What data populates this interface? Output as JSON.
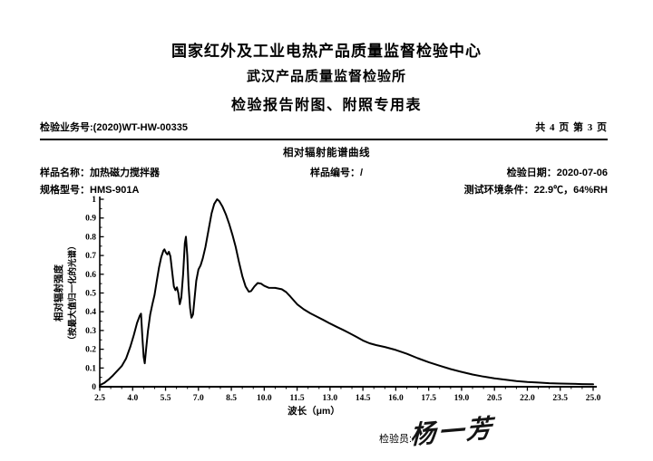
{
  "page": {
    "org_line1": "国家红外及工业电热产品质量监督检验中心",
    "org_line2": "武汉产品质量监督检验所",
    "org_line3": "检验报告附图、附照专用表",
    "business_no_label": "检验业务号:",
    "business_no": "(2020)WT-HW-00335",
    "page_indicator": "共 4 页 第 3 页"
  },
  "info": {
    "sample_name_label": "样品名称：",
    "sample_name": "加热磁力搅拌器",
    "sample_no_label": "样品编号：",
    "sample_no": "/",
    "inspect_date_label": "检验日期：",
    "inspect_date": "2020-07-06",
    "model_label": "规格型号：",
    "model": "HMS-901A",
    "env_label": "测试环境条件：",
    "env_value": "22.9℃，64%RH"
  },
  "footer": {
    "inspector_label": "检验员:",
    "inspector_signature": "杨一芳"
  },
  "chart_data": {
    "type": "line",
    "title": "相对辐射能谱曲线",
    "xlabel": "波长（μm）",
    "ylabel_line1": "相对辐射强度",
    "ylabel_line2": "（按最大值归一化的光谱）",
    "xlim": [
      2.5,
      25.0
    ],
    "ylim": [
      0,
      1
    ],
    "x_major_step": 1.5,
    "x_minor_step": 0.5,
    "y_major_step": 0.1,
    "y_minor_step": 0.05,
    "xtick_labels": [
      "2.5",
      "4.0",
      "5.5",
      "7.0",
      "8.5",
      "10.0",
      "11.5",
      "13.0",
      "14.5",
      "16.0",
      "17.5",
      "19.0",
      "20.5",
      "22.0",
      "23.5",
      "25.0"
    ],
    "ytick_labels": [
      "0",
      "0.1",
      "0.2",
      "0.3",
      "0.4",
      "0.5",
      "0.6",
      "0.7",
      "0.8",
      "0.9",
      "1"
    ],
    "grid": false,
    "legend": "none",
    "line_color": "#000000",
    "line_width": 2,
    "points": [
      [
        2.5,
        0.008
      ],
      [
        2.7,
        0.02
      ],
      [
        2.9,
        0.038
      ],
      [
        3.1,
        0.06
      ],
      [
        3.3,
        0.085
      ],
      [
        3.5,
        0.11
      ],
      [
        3.7,
        0.15
      ],
      [
        3.9,
        0.215
      ],
      [
        4.05,
        0.275
      ],
      [
        4.2,
        0.34
      ],
      [
        4.32,
        0.378
      ],
      [
        4.38,
        0.39
      ],
      [
        4.44,
        0.27
      ],
      [
        4.5,
        0.16
      ],
      [
        4.55,
        0.125
      ],
      [
        4.62,
        0.21
      ],
      [
        4.7,
        0.3
      ],
      [
        4.8,
        0.385
      ],
      [
        4.9,
        0.44
      ],
      [
        5.0,
        0.49
      ],
      [
        5.1,
        0.565
      ],
      [
        5.2,
        0.635
      ],
      [
        5.3,
        0.69
      ],
      [
        5.4,
        0.725
      ],
      [
        5.45,
        0.733
      ],
      [
        5.52,
        0.715
      ],
      [
        5.58,
        0.706
      ],
      [
        5.65,
        0.72
      ],
      [
        5.72,
        0.695
      ],
      [
        5.8,
        0.615
      ],
      [
        5.88,
        0.535
      ],
      [
        5.95,
        0.515
      ],
      [
        6.02,
        0.53
      ],
      [
        6.08,
        0.5
      ],
      [
        6.15,
        0.44
      ],
      [
        6.22,
        0.475
      ],
      [
        6.3,
        0.6
      ],
      [
        6.38,
        0.765
      ],
      [
        6.43,
        0.8
      ],
      [
        6.49,
        0.7
      ],
      [
        6.55,
        0.54
      ],
      [
        6.62,
        0.42
      ],
      [
        6.68,
        0.368
      ],
      [
        6.75,
        0.385
      ],
      [
        6.82,
        0.465
      ],
      [
        6.9,
        0.565
      ],
      [
        7.0,
        0.625
      ],
      [
        7.1,
        0.648
      ],
      [
        7.2,
        0.685
      ],
      [
        7.32,
        0.745
      ],
      [
        7.45,
        0.83
      ],
      [
        7.6,
        0.925
      ],
      [
        7.72,
        0.975
      ],
      [
        7.85,
        1.0
      ],
      [
        7.95,
        0.99
      ],
      [
        8.1,
        0.96
      ],
      [
        8.25,
        0.92
      ],
      [
        8.4,
        0.87
      ],
      [
        8.55,
        0.81
      ],
      [
        8.7,
        0.745
      ],
      [
        8.85,
        0.665
      ],
      [
        9.0,
        0.59
      ],
      [
        9.15,
        0.535
      ],
      [
        9.3,
        0.507
      ],
      [
        9.4,
        0.51
      ],
      [
        9.55,
        0.535
      ],
      [
        9.7,
        0.553
      ],
      [
        9.85,
        0.55
      ],
      [
        10.0,
        0.538
      ],
      [
        10.2,
        0.528
      ],
      [
        10.5,
        0.527
      ],
      [
        10.8,
        0.52
      ],
      [
        11.0,
        0.505
      ],
      [
        11.2,
        0.48
      ],
      [
        11.5,
        0.44
      ],
      [
        11.8,
        0.413
      ],
      [
        12.1,
        0.392
      ],
      [
        12.4,
        0.374
      ],
      [
        12.7,
        0.356
      ],
      [
        13.0,
        0.337
      ],
      [
        13.3,
        0.32
      ],
      [
        13.6,
        0.303
      ],
      [
        13.9,
        0.285
      ],
      [
        14.2,
        0.266
      ],
      [
        14.5,
        0.247
      ],
      [
        14.8,
        0.232
      ],
      [
        15.1,
        0.222
      ],
      [
        15.5,
        0.212
      ],
      [
        16.0,
        0.196
      ],
      [
        16.5,
        0.176
      ],
      [
        17.0,
        0.152
      ],
      [
        17.5,
        0.131
      ],
      [
        18.0,
        0.112
      ],
      [
        18.5,
        0.094
      ],
      [
        19.0,
        0.079
      ],
      [
        19.5,
        0.065
      ],
      [
        20.0,
        0.054
      ],
      [
        20.5,
        0.045
      ],
      [
        21.0,
        0.037
      ],
      [
        21.5,
        0.03
      ],
      [
        22.0,
        0.025
      ],
      [
        22.5,
        0.022
      ],
      [
        23.0,
        0.019
      ],
      [
        23.5,
        0.017
      ],
      [
        24.0,
        0.016
      ],
      [
        24.5,
        0.014
      ],
      [
        25.0,
        0.013
      ]
    ]
  }
}
